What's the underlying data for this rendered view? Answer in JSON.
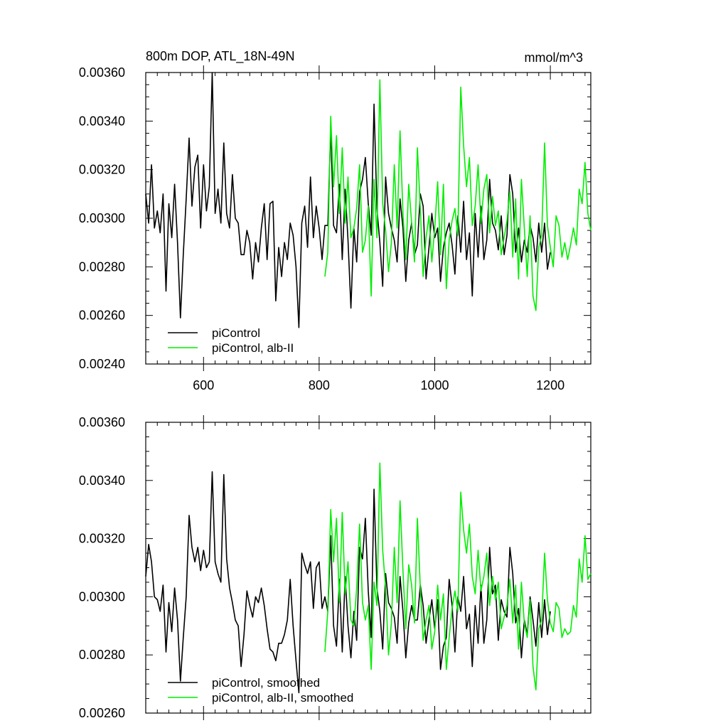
{
  "chart_data": [
    {
      "type": "line",
      "title": "800m DOP, ATL_18N-49N",
      "units": "mmol/m^3",
      "xlim": [
        500,
        1270
      ],
      "ylim": [
        0.0024,
        0.0036
      ],
      "xticks": [
        600,
        800,
        1000,
        1200
      ],
      "xtick_labels": [
        "600",
        "800",
        "1000",
        "1200"
      ],
      "yticks": [
        0.0024,
        0.0026,
        0.0028,
        0.003,
        0.0032,
        0.0034,
        0.0036
      ],
      "ytick_labels": [
        "0.00240",
        "0.00260",
        "0.00280",
        "0.00300",
        "0.00320",
        "0.00340",
        "0.00360"
      ],
      "legend_position": "bottom-left",
      "series": [
        {
          "name": "piControl",
          "color": "#000000",
          "x": [
            500,
            505,
            510,
            515,
            520,
            525,
            530,
            535,
            540,
            545,
            550,
            555,
            560,
            565,
            570,
            575,
            580,
            585,
            590,
            595,
            600,
            605,
            610,
            615,
            620,
            625,
            630,
            635,
            640,
            645,
            650,
            655,
            660,
            665,
            670,
            675,
            680,
            685,
            690,
            695,
            700,
            705,
            710,
            715,
            720,
            725,
            730,
            735,
            740,
            745,
            750,
            755,
            760,
            765,
            770,
            775,
            780,
            785,
            790,
            795,
            800,
            805,
            810,
            815,
            820,
            825,
            830,
            835,
            840,
            845,
            850,
            855,
            860,
            865,
            870,
            875,
            880,
            885,
            890,
            895,
            900,
            905,
            910,
            915,
            920,
            925,
            930,
            935,
            940,
            945,
            950,
            955,
            960,
            965,
            970,
            975,
            980,
            985,
            990,
            995,
            1000,
            1005,
            1010,
            1015,
            1020,
            1025,
            1030,
            1035,
            1040,
            1045,
            1050,
            1055,
            1060,
            1065,
            1070,
            1075,
            1080,
            1085,
            1090,
            1095,
            1100,
            1105,
            1110,
            1115,
            1120,
            1125,
            1130,
            1135,
            1140,
            1145,
            1150,
            1155,
            1160,
            1165,
            1170,
            1175,
            1180,
            1185,
            1190,
            1195,
            1200
          ],
          "values": [
            0.0031,
            0.00298,
            0.00322,
            0.00296,
            0.00303,
            0.00294,
            0.0031,
            0.0027,
            0.00306,
            0.00292,
            0.00314,
            0.0029,
            0.00259,
            0.00285,
            0.00308,
            0.00333,
            0.00305,
            0.00321,
            0.00326,
            0.00296,
            0.00322,
            0.00303,
            0.00313,
            0.0036,
            0.00302,
            0.00312,
            0.00298,
            0.00331,
            0.00302,
            0.00296,
            0.00318,
            0.003,
            0.00298,
            0.00285,
            0.00285,
            0.00295,
            0.0029,
            0.00275,
            0.0029,
            0.00282,
            0.00296,
            0.00306,
            0.00283,
            0.00306,
            0.00307,
            0.00266,
            0.00288,
            0.00276,
            0.0029,
            0.00283,
            0.00298,
            0.00293,
            0.0028,
            0.00255,
            0.00298,
            0.00305,
            0.00288,
            0.00317,
            0.00292,
            0.00305,
            0.00296,
            0.00283,
            0.00297,
            0.00297,
            0.00337,
            0.00297,
            0.00294,
            0.00314,
            0.00283,
            0.00312,
            0.00291,
            0.00263,
            0.00296,
            0.00282,
            0.00311,
            0.00316,
            0.00325,
            0.00306,
            0.00293,
            0.00347,
            0.00304,
            0.0029,
            0.00272,
            0.00317,
            0.00302,
            0.00296,
            0.00291,
            0.00282,
            0.00308,
            0.00296,
            0.00274,
            0.00291,
            0.00298,
            0.00285,
            0.00289,
            0.0031,
            0.00305,
            0.00275,
            0.00288,
            0.00302,
            0.00292,
            0.00296,
            0.00274,
            0.00288,
            0.00294,
            0.00298,
            0.00289,
            0.00277,
            0.00301,
            0.00286,
            0.00307,
            0.00283,
            0.00294,
            0.00268,
            0.00302,
            0.00284,
            0.00305,
            0.00283,
            0.00291,
            0.00316,
            0.00298,
            0.00295,
            0.00287,
            0.00301,
            0.00285,
            0.00293,
            0.00318,
            0.0031,
            0.00286,
            0.00296,
            0.00282,
            0.00291,
            0.00286,
            0.00297,
            0.00292,
            0.00282,
            0.00298,
            0.00286,
            0.00298,
            0.00279,
            0.00286
          ]
        },
        {
          "name": "piControl, alb-II",
          "color": "#00ee00",
          "x": [
            810,
            815,
            820,
            825,
            830,
            835,
            840,
            845,
            850,
            855,
            860,
            865,
            870,
            875,
            880,
            885,
            890,
            895,
            900,
            905,
            910,
            915,
            920,
            925,
            930,
            935,
            940,
            945,
            950,
            955,
            960,
            965,
            970,
            975,
            980,
            985,
            990,
            995,
            1000,
            1005,
            1010,
            1015,
            1020,
            1025,
            1030,
            1035,
            1040,
            1045,
            1050,
            1055,
            1060,
            1065,
            1070,
            1075,
            1080,
            1085,
            1090,
            1095,
            1100,
            1105,
            1110,
            1115,
            1120,
            1125,
            1130,
            1135,
            1140,
            1145,
            1150,
            1155,
            1160,
            1165,
            1170,
            1175,
            1180,
            1185,
            1190,
            1195,
            1200,
            1205,
            1210,
            1215,
            1220,
            1225,
            1230,
            1235,
            1240,
            1245,
            1250,
            1255,
            1260,
            1265,
            1270
          ],
          "values": [
            0.00276,
            0.00286,
            0.00342,
            0.00313,
            0.00334,
            0.00302,
            0.00329,
            0.00298,
            0.00317,
            0.00292,
            0.00296,
            0.00304,
            0.00322,
            0.00286,
            0.00291,
            0.00305,
            0.00268,
            0.00316,
            0.00292,
            0.00357,
            0.00306,
            0.00295,
            0.00278,
            0.0029,
            0.00322,
            0.00296,
            0.00336,
            0.00302,
            0.00283,
            0.00314,
            0.00298,
            0.00282,
            0.00329,
            0.00304,
            0.00276,
            0.00292,
            0.00301,
            0.00282,
            0.00296,
            0.00315,
            0.00285,
            0.00314,
            0.00271,
            0.00291,
            0.00299,
            0.00304,
            0.00293,
            0.00354,
            0.0033,
            0.00313,
            0.00325,
            0.00297,
            0.00305,
            0.00322,
            0.00298,
            0.00312,
            0.00318,
            0.00294,
            0.00309,
            0.00297,
            0.00303,
            0.00285,
            0.00292,
            0.00299,
            0.00311,
            0.00284,
            0.00308,
            0.00275,
            0.00316,
            0.00296,
            0.00276,
            0.00301,
            0.00268,
            0.00262,
            0.00288,
            0.00293,
            0.00331,
            0.00297,
            0.00288,
            0.0028,
            0.00301,
            0.00297,
            0.00284,
            0.0029,
            0.00283,
            0.00289,
            0.00296,
            0.00289,
            0.00312,
            0.00306,
            0.00323,
            0.00302,
            0.00295
          ]
        }
      ]
    },
    {
      "type": "line",
      "xlim": [
        500,
        1270
      ],
      "ylim": [
        0.0026,
        0.0036
      ],
      "xticks": [
        600,
        800,
        1000,
        1200
      ],
      "xtick_labels": [],
      "yticks": [
        0.0026,
        0.0028,
        0.003,
        0.0032,
        0.0034,
        0.0036
      ],
      "ytick_labels": [
        "0.00260",
        "0.00280",
        "0.00300",
        "0.00320",
        "0.00340",
        "0.00360"
      ],
      "legend_position": "bottom-left",
      "series": [
        {
          "name": "piControl, smoothed",
          "color": "#000000",
          "x": [
            500,
            505,
            510,
            515,
            520,
            525,
            530,
            535,
            540,
            545,
            550,
            555,
            560,
            565,
            570,
            575,
            580,
            585,
            590,
            595,
            600,
            605,
            610,
            615,
            620,
            625,
            630,
            635,
            640,
            645,
            650,
            655,
            660,
            665,
            670,
            675,
            680,
            685,
            690,
            695,
            700,
            705,
            710,
            715,
            720,
            725,
            730,
            735,
            740,
            745,
            750,
            755,
            760,
            765,
            770,
            775,
            780,
            785,
            790,
            795,
            800,
            805,
            810,
            815,
            820,
            825,
            830,
            835,
            840,
            845,
            850,
            855,
            860,
            865,
            870,
            875,
            880,
            885,
            890,
            895,
            900,
            905,
            910,
            915,
            920,
            925,
            930,
            935,
            940,
            945,
            950,
            955,
            960,
            965,
            970,
            975,
            980,
            985,
            990,
            995,
            1000,
            1005,
            1010,
            1015,
            1020,
            1025,
            1030,
            1035,
            1040,
            1045,
            1050,
            1055,
            1060,
            1065,
            1070,
            1075,
            1080,
            1085,
            1090,
            1095,
            1100,
            1105,
            1110,
            1115,
            1120,
            1125,
            1130,
            1135,
            1140,
            1145,
            1150,
            1155,
            1160,
            1165,
            1170,
            1175,
            1180,
            1185,
            1190,
            1195,
            1200
          ],
          "values": [
            0.00307,
            0.00318,
            0.00312,
            0.003,
            0.00299,
            0.00295,
            0.00304,
            0.00281,
            0.00298,
            0.00288,
            0.00303,
            0.00292,
            0.00271,
            0.00286,
            0.003,
            0.00328,
            0.00317,
            0.00312,
            0.00317,
            0.00309,
            0.00316,
            0.0031,
            0.00312,
            0.00343,
            0.00312,
            0.00308,
            0.00305,
            0.00342,
            0.00313,
            0.00303,
            0.00298,
            0.00292,
            0.0029,
            0.00276,
            0.00287,
            0.00302,
            0.00297,
            0.00293,
            0.003,
            0.00298,
            0.00303,
            0.00297,
            0.00289,
            0.00282,
            0.00281,
            0.00278,
            0.00284,
            0.00284,
            0.00287,
            0.00292,
            0.00306,
            0.0029,
            0.00278,
            0.00267,
            0.00315,
            0.00311,
            0.00308,
            0.00312,
            0.00296,
            0.0031,
            0.00312,
            0.00296,
            0.003,
            0.00295,
            0.00321,
            0.0029,
            0.00283,
            0.00306,
            0.00281,
            0.00307,
            0.0029,
            0.00279,
            0.00295,
            0.00285,
            0.00317,
            0.00313,
            0.00327,
            0.00302,
            0.00286,
            0.00337,
            0.00303,
            0.00295,
            0.00282,
            0.00308,
            0.00298,
            0.00296,
            0.00293,
            0.00284,
            0.00307,
            0.00295,
            0.00279,
            0.00291,
            0.00297,
            0.00292,
            0.00292,
            0.00304,
            0.00297,
            0.00284,
            0.00292,
            0.00299,
            0.00289,
            0.00299,
            0.00275,
            0.00283,
            0.00286,
            0.00306,
            0.00297,
            0.00281,
            0.003,
            0.00295,
            0.00307,
            0.00289,
            0.00294,
            0.00276,
            0.00297,
            0.00284,
            0.00304,
            0.00284,
            0.00292,
            0.00317,
            0.00301,
            0.00304,
            0.00285,
            0.00299,
            0.00295,
            0.00293,
            0.00317,
            0.00308,
            0.00291,
            0.00296,
            0.00279,
            0.00292,
            0.00287,
            0.003,
            0.00292,
            0.00283,
            0.00298,
            0.00286,
            0.00299,
            0.00287,
            0.00295
          ]
        },
        {
          "name": "piControl, alb-II, smoothed",
          "color": "#00ee00",
          "x": [
            810,
            815,
            820,
            825,
            830,
            835,
            840,
            845,
            850,
            855,
            860,
            865,
            870,
            875,
            880,
            885,
            890,
            895,
            900,
            905,
            910,
            915,
            920,
            925,
            930,
            935,
            940,
            945,
            950,
            955,
            960,
            965,
            970,
            975,
            980,
            985,
            990,
            995,
            1000,
            1005,
            1010,
            1015,
            1020,
            1025,
            1030,
            1035,
            1040,
            1045,
            1050,
            1055,
            1060,
            1065,
            1070,
            1075,
            1080,
            1085,
            1090,
            1095,
            1100,
            1105,
            1110,
            1115,
            1120,
            1125,
            1130,
            1135,
            1140,
            1145,
            1150,
            1155,
            1160,
            1165,
            1170,
            1175,
            1180,
            1185,
            1190,
            1195,
            1200,
            1205,
            1210,
            1215,
            1220,
            1225,
            1230,
            1235,
            1240,
            1245,
            1250,
            1255,
            1260,
            1265,
            1270
          ],
          "values": [
            0.00281,
            0.00295,
            0.0033,
            0.00312,
            0.00327,
            0.00298,
            0.00329,
            0.00301,
            0.00312,
            0.00292,
            0.0029,
            0.00303,
            0.00325,
            0.00298,
            0.00292,
            0.00297,
            0.00275,
            0.00305,
            0.00297,
            0.00346,
            0.00316,
            0.00303,
            0.0028,
            0.00291,
            0.00317,
            0.00298,
            0.00333,
            0.00309,
            0.00289,
            0.00311,
            0.00304,
            0.00291,
            0.00327,
            0.00303,
            0.00285,
            0.00292,
            0.00297,
            0.00282,
            0.00288,
            0.00304,
            0.00292,
            0.00301,
            0.00275,
            0.00286,
            0.00296,
            0.00302,
            0.00295,
            0.00336,
            0.00323,
            0.00315,
            0.00325,
            0.00307,
            0.00301,
            0.00316,
            0.00302,
            0.00307,
            0.00315,
            0.00297,
            0.00307,
            0.00299,
            0.00305,
            0.00289,
            0.00293,
            0.00297,
            0.00306,
            0.00291,
            0.00304,
            0.00282,
            0.00305,
            0.00291,
            0.00286,
            0.00299,
            0.00276,
            0.00268,
            0.00289,
            0.00292,
            0.00315,
            0.00299,
            0.00291,
            0.00288,
            0.00298,
            0.00296,
            0.00286,
            0.00289,
            0.00287,
            0.00288,
            0.00297,
            0.00293,
            0.00313,
            0.00305,
            0.00321,
            0.00306,
            0.00308
          ]
        }
      ]
    }
  ]
}
